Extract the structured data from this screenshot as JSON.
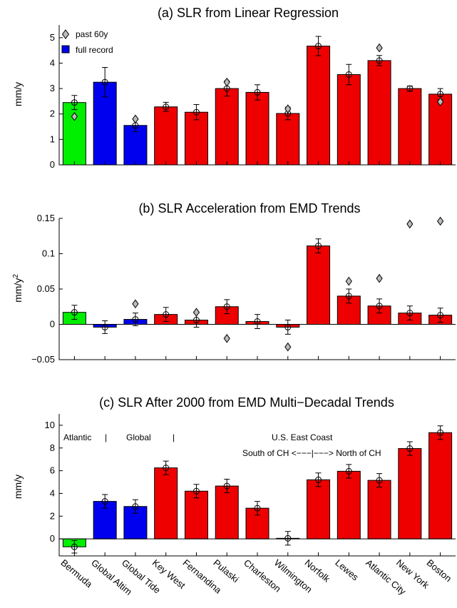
{
  "colors": {
    "Atlantic": "#00ee00",
    "Global": "#0000ee",
    "U.S. East Coast": "#ee0000",
    "marker": "#bbbbbb"
  },
  "categories": [
    "Bermuda",
    "Global Altim",
    "Global Tide",
    "Key West",
    "Fernandina",
    "Pulaski",
    "Charleston",
    "Wilmington",
    "Norfolk",
    "Lewes",
    "Atlantic City",
    "New York",
    "Boston"
  ],
  "groups": [
    "Atlantic",
    "Global",
    "Global",
    "U.S. East Coast",
    "U.S. East Coast",
    "U.S. East Coast",
    "U.S. East Coast",
    "U.S. East Coast",
    "U.S. East Coast",
    "U.S. East Coast",
    "U.S. East Coast",
    "U.S. East Coast",
    "U.S. East Coast"
  ],
  "chart_data": [
    {
      "type": "bar",
      "title": "(a) SLR from Linear Regression",
      "ylabel": "mm/y",
      "ylim": [
        0,
        5.5
      ],
      "yticks": [
        "0",
        "1",
        "2",
        "3",
        "4",
        "5"
      ],
      "legend": {
        "placement": "top-left",
        "entries": [
          "past 60y",
          "full record"
        ]
      },
      "series": [
        {
          "name": "full record",
          "values": [
            2.45,
            3.25,
            1.55,
            2.28,
            2.07,
            3.0,
            2.85,
            2.02,
            4.67,
            3.55,
            4.1,
            3.0,
            2.78
          ],
          "errors": [
            0.28,
            0.58,
            0.25,
            0.18,
            0.3,
            0.3,
            0.3,
            0.25,
            0.38,
            0.4,
            0.2,
            0.1,
            0.22
          ]
        },
        {
          "name": "past 60y",
          "values": [
            1.9,
            null,
            1.8,
            null,
            null,
            3.25,
            null,
            2.2,
            null,
            null,
            4.6,
            null,
            2.48
          ]
        }
      ]
    },
    {
      "type": "bar",
      "title": "(b) SLR Acceleration from EMD Trends",
      "ylabel": "mm/y",
      "ylabel_sup": "2",
      "ylim": [
        -0.05,
        0.15
      ],
      "yticks": [
        "−0.05",
        "0",
        "0.05",
        "0.1",
        "0.15"
      ],
      "series": [
        {
          "name": "full record",
          "values": [
            0.017,
            -0.004,
            0.007,
            0.014,
            0.006,
            0.025,
            0.004,
            -0.004,
            0.111,
            0.04,
            0.026,
            0.016,
            0.013
          ],
          "errors": [
            0.01,
            0.009,
            0.009,
            0.01,
            0.01,
            0.01,
            0.01,
            0.01,
            0.01,
            0.01,
            0.01,
            0.01,
            0.01
          ]
        },
        {
          "name": "past 60y",
          "values": [
            null,
            null,
            0.029,
            null,
            0.017,
            -0.02,
            null,
            -0.032,
            null,
            0.061,
            0.065,
            0.142,
            0.146
          ]
        }
      ]
    },
    {
      "type": "bar",
      "title": "(c) SLR After 2000 from EMD Multi−Decadal Trends",
      "ylabel": "mm/y",
      "ylim": [
        -1.5,
        11
      ],
      "yticks": [
        "0",
        "2",
        "4",
        "6",
        "8",
        "10"
      ],
      "series": [
        {
          "name": "full record",
          "values": [
            -0.7,
            3.3,
            2.85,
            6.25,
            4.2,
            4.65,
            2.7,
            0.05,
            5.2,
            5.95,
            5.15,
            7.95,
            9.35
          ],
          "errors": [
            0.55,
            0.6,
            0.6,
            0.6,
            0.6,
            0.6,
            0.6,
            0.6,
            0.6,
            0.6,
            0.6,
            0.6,
            0.6
          ]
        }
      ],
      "annotations": {
        "group_row": [
          "Atlantic",
          "|",
          "Global",
          "|",
          "U.S. East Coast"
        ],
        "subtitle": "South of CH <−−−|−−−> North of CH"
      }
    }
  ]
}
